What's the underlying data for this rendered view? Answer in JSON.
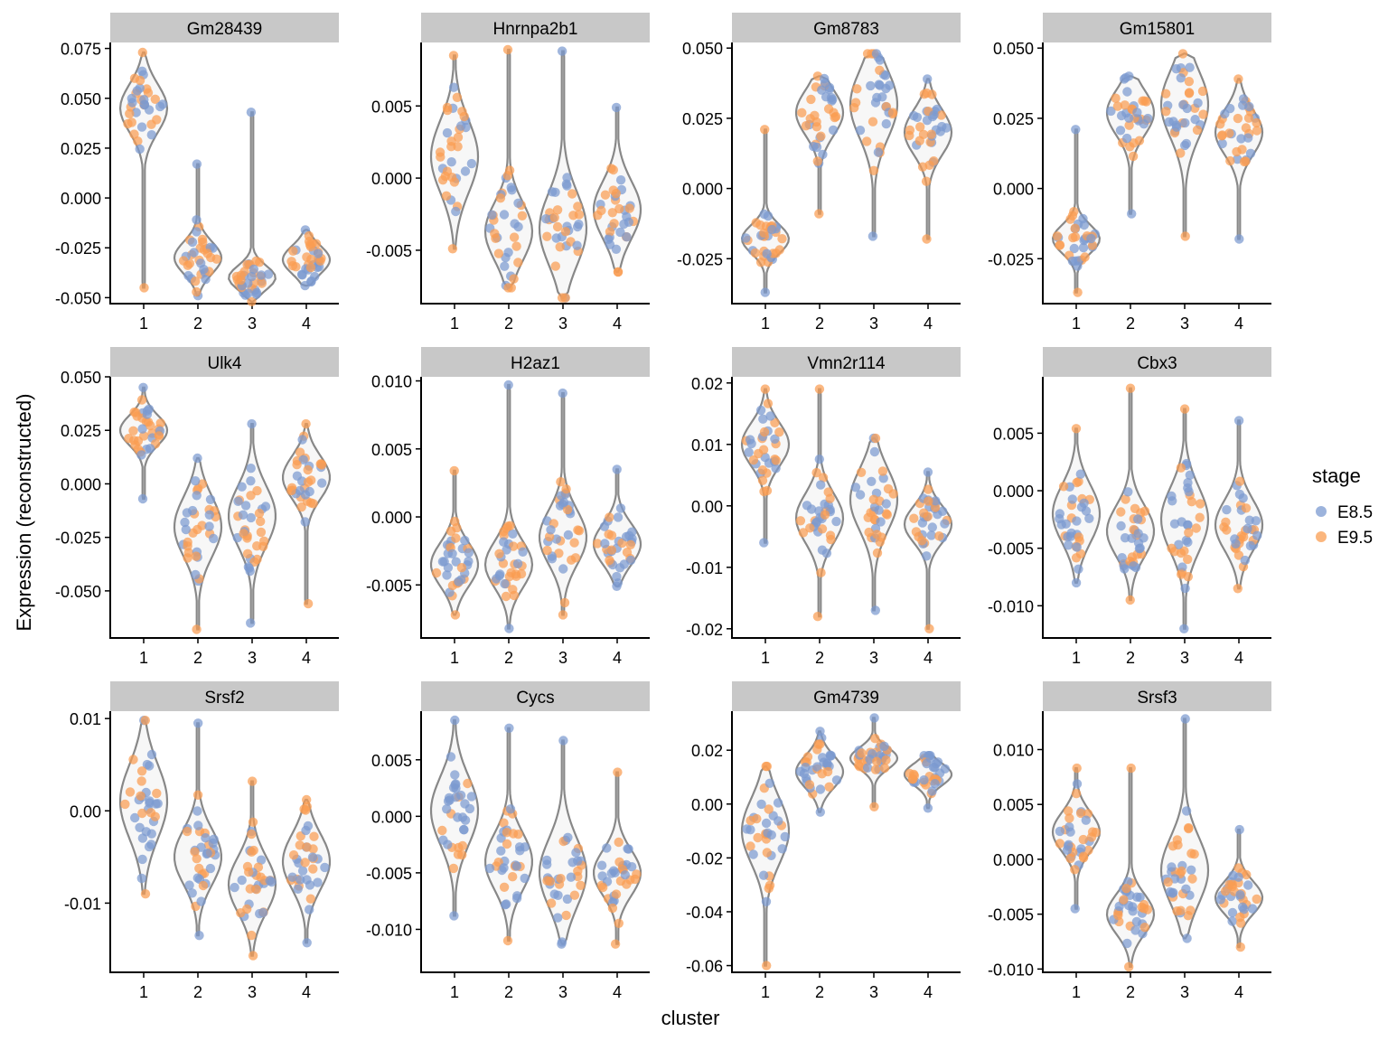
{
  "figure": {
    "x_axis_title": "cluster",
    "y_axis_title": "Expression (reconstructed)"
  },
  "legend": {
    "title": "stage",
    "placement": "right",
    "entries": [
      {
        "label": "E8.5",
        "color": "#7b9ad0"
      },
      {
        "label": "E9.5",
        "color": "#f99d52"
      }
    ]
  },
  "chart_data": [
    {
      "type": "violin",
      "title": "Gm28439",
      "categories": [
        "1",
        "2",
        "3",
        "4"
      ],
      "ylim": [
        -0.053,
        0.078
      ],
      "yticks": [
        -0.05,
        -0.025,
        0,
        0.025,
        0.05,
        0.075
      ],
      "ytick_labels": [
        "-0.050",
        "-0.025",
        "0.000",
        "0.025",
        "0.050",
        "0.075"
      ],
      "groups": [
        {
          "cluster": "1",
          "min": -0.045,
          "max": 0.073,
          "center": 0.045,
          "spread": 0.012
        },
        {
          "cluster": "2",
          "min": -0.049,
          "max": 0.017,
          "center": -0.03,
          "spread": 0.008
        },
        {
          "cluster": "3",
          "min": -0.052,
          "max": 0.043,
          "center": -0.04,
          "spread": 0.006
        },
        {
          "cluster": "4",
          "min": -0.044,
          "max": -0.016,
          "center": -0.031,
          "spread": 0.007
        }
      ]
    },
    {
      "type": "violin",
      "title": "Hnrnpa2b1",
      "categories": [
        "1",
        "2",
        "3",
        "4"
      ],
      "ylim": [
        -0.0087,
        0.0094
      ],
      "yticks": [
        -0.005,
        0,
        0.005
      ],
      "ytick_labels": [
        "-0.005",
        "0.000",
        "0.005"
      ],
      "groups": [
        {
          "cluster": "1",
          "min": -0.0049,
          "max": 0.0085,
          "center": 0.0015,
          "spread": 0.0025
        },
        {
          "cluster": "2",
          "min": -0.0076,
          "max": 0.0089,
          "center": -0.0037,
          "spread": 0.002
        },
        {
          "cluster": "3",
          "min": -0.0083,
          "max": 0.0088,
          "center": -0.0035,
          "spread": 0.0025
        },
        {
          "cluster": "4",
          "min": -0.0065,
          "max": 0.0049,
          "center": -0.0022,
          "spread": 0.002
        }
      ]
    },
    {
      "type": "violin",
      "title": "Gm8783",
      "categories": [
        "1",
        "2",
        "3",
        "4"
      ],
      "ylim": [
        -0.041,
        0.052
      ],
      "yticks": [
        -0.025,
        0,
        0.025,
        0.05
      ],
      "ytick_labels": [
        "-0.025",
        "0.000",
        "0.025",
        "0.050"
      ],
      "groups": [
        {
          "cluster": "1",
          "min": -0.037,
          "max": 0.021,
          "center": -0.018,
          "spread": 0.005
        },
        {
          "cluster": "2",
          "min": -0.009,
          "max": 0.04,
          "center": 0.027,
          "spread": 0.008
        },
        {
          "cluster": "3",
          "min": -0.017,
          "max": 0.048,
          "center": 0.03,
          "spread": 0.012
        },
        {
          "cluster": "4",
          "min": -0.018,
          "max": 0.039,
          "center": 0.02,
          "spread": 0.008
        }
      ]
    },
    {
      "type": "violin",
      "title": "Gm15801",
      "categories": [
        "1",
        "2",
        "3",
        "4"
      ],
      "ylim": [
        -0.041,
        0.052
      ],
      "yticks": [
        -0.025,
        0,
        0.025,
        0.05
      ],
      "ytick_labels": [
        "-0.025",
        "0.000",
        "0.025",
        "0.050"
      ],
      "groups": [
        {
          "cluster": "1",
          "min": -0.037,
          "max": 0.021,
          "center": -0.018,
          "spread": 0.005
        },
        {
          "cluster": "2",
          "min": -0.009,
          "max": 0.04,
          "center": 0.027,
          "spread": 0.008
        },
        {
          "cluster": "3",
          "min": -0.017,
          "max": 0.048,
          "center": 0.03,
          "spread": 0.012
        },
        {
          "cluster": "4",
          "min": -0.018,
          "max": 0.039,
          "center": 0.02,
          "spread": 0.008
        }
      ]
    },
    {
      "type": "violin",
      "title": "Ulk4",
      "categories": [
        "1",
        "2",
        "3",
        "4"
      ],
      "ylim": [
        -0.072,
        0.05
      ],
      "yticks": [
        -0.05,
        -0.025,
        0,
        0.025,
        0.05
      ],
      "ytick_labels": [
        "-0.050",
        "-0.025",
        "0.000",
        "0.025",
        "0.050"
      ],
      "groups": [
        {
          "cluster": "1",
          "min": -0.007,
          "max": 0.045,
          "center": 0.025,
          "spread": 0.007
        },
        {
          "cluster": "2",
          "min": -0.068,
          "max": 0.012,
          "center": -0.02,
          "spread": 0.014
        },
        {
          "cluster": "3",
          "min": -0.065,
          "max": 0.028,
          "center": -0.015,
          "spread": 0.014
        },
        {
          "cluster": "4",
          "min": -0.056,
          "max": 0.028,
          "center": 0.003,
          "spread": 0.01
        }
      ]
    },
    {
      "type": "violin",
      "title": "H2az1",
      "categories": [
        "1",
        "2",
        "3",
        "4"
      ],
      "ylim": [
        -0.0089,
        0.0103
      ],
      "yticks": [
        -0.005,
        0,
        0.005,
        0.01
      ],
      "ytick_labels": [
        "-0.005",
        "0.000",
        "0.005",
        "0.010"
      ],
      "groups": [
        {
          "cluster": "1",
          "min": -0.0072,
          "max": 0.0034,
          "center": -0.0035,
          "spread": 0.0016
        },
        {
          "cluster": "2",
          "min": -0.0082,
          "max": 0.0097,
          "center": -0.0035,
          "spread": 0.0017
        },
        {
          "cluster": "3",
          "min": -0.0072,
          "max": 0.0091,
          "center": -0.0015,
          "spread": 0.002
        },
        {
          "cluster": "4",
          "min": -0.0051,
          "max": 0.0035,
          "center": -0.002,
          "spread": 0.0015
        }
      ]
    },
    {
      "type": "violin",
      "title": "Vmn2r114",
      "categories": [
        "1",
        "2",
        "3",
        "4"
      ],
      "ylim": [
        -0.0215,
        0.021
      ],
      "yticks": [
        -0.02,
        -0.01,
        0,
        0.01,
        0.02
      ],
      "ytick_labels": [
        "-0.02",
        "-0.01",
        "0.00",
        "0.01",
        "0.02"
      ],
      "groups": [
        {
          "cluster": "1",
          "min": -0.006,
          "max": 0.019,
          "center": 0.01,
          "spread": 0.0035
        },
        {
          "cluster": "2",
          "min": -0.018,
          "max": 0.019,
          "center": -0.002,
          "spread": 0.004
        },
        {
          "cluster": "3",
          "min": -0.017,
          "max": 0.011,
          "center": 0.001,
          "spread": 0.005
        },
        {
          "cluster": "4",
          "min": -0.02,
          "max": 0.0055,
          "center": -0.003,
          "spread": 0.003
        }
      ]
    },
    {
      "type": "violin",
      "title": "Cbx3",
      "categories": [
        "1",
        "2",
        "3",
        "4"
      ],
      "ylim": [
        -0.0128,
        0.0099
      ],
      "yticks": [
        -0.01,
        -0.005,
        0,
        0.005
      ],
      "ytick_labels": [
        "-0.010",
        "-0.005",
        "0.000",
        "0.005"
      ],
      "groups": [
        {
          "cluster": "1",
          "min": -0.008,
          "max": 0.0054,
          "center": -0.002,
          "spread": 0.0025
        },
        {
          "cluster": "2",
          "min": -0.0095,
          "max": 0.0089,
          "center": -0.0035,
          "spread": 0.0022
        },
        {
          "cluster": "3",
          "min": -0.012,
          "max": 0.0071,
          "center": -0.0025,
          "spread": 0.0028
        },
        {
          "cluster": "4",
          "min": -0.0085,
          "max": 0.0061,
          "center": -0.003,
          "spread": 0.0022
        }
      ]
    },
    {
      "type": "violin",
      "title": "Srsf2",
      "categories": [
        "1",
        "2",
        "3",
        "4"
      ],
      "ylim": [
        -0.0175,
        0.0108
      ],
      "yticks": [
        -0.01,
        0,
        0.01
      ],
      "ytick_labels": [
        "-0.01",
        "0.00",
        "0.01"
      ],
      "groups": [
        {
          "cluster": "1",
          "min": -0.009,
          "max": 0.0098,
          "center": 0.001,
          "spread": 0.004
        },
        {
          "cluster": "2",
          "min": -0.0135,
          "max": 0.0095,
          "center": -0.005,
          "spread": 0.003
        },
        {
          "cluster": "3",
          "min": -0.0157,
          "max": 0.0032,
          "center": -0.008,
          "spread": 0.003
        },
        {
          "cluster": "4",
          "min": -0.0143,
          "max": 0.0012,
          "center": -0.0055,
          "spread": 0.003
        }
      ]
    },
    {
      "type": "violin",
      "title": "Cycs",
      "categories": [
        "1",
        "2",
        "3",
        "4"
      ],
      "ylim": [
        -0.0138,
        0.0093
      ],
      "yticks": [
        -0.01,
        -0.005,
        0,
        0.005
      ],
      "ytick_labels": [
        "-0.010",
        "-0.005",
        "0.000",
        "0.005"
      ],
      "groups": [
        {
          "cluster": "1",
          "min": -0.0088,
          "max": 0.0085,
          "center": 0.0005,
          "spread": 0.003
        },
        {
          "cluster": "2",
          "min": -0.011,
          "max": 0.0078,
          "center": -0.004,
          "spread": 0.0025
        },
        {
          "cluster": "3",
          "min": -0.0113,
          "max": 0.0067,
          "center": -0.005,
          "spread": 0.003
        },
        {
          "cluster": "4",
          "min": -0.0113,
          "max": 0.0039,
          "center": -0.005,
          "spread": 0.002
        }
      ]
    },
    {
      "type": "violin",
      "title": "Gm4739",
      "categories": [
        "1",
        "2",
        "3",
        "4"
      ],
      "ylim": [
        -0.0625,
        0.0345
      ],
      "yticks": [
        -0.06,
        -0.04,
        -0.02,
        0,
        0.02
      ],
      "ytick_labels": [
        "-0.06",
        "-0.04",
        "-0.02",
        "0.00",
        "0.02"
      ],
      "groups": [
        {
          "cluster": "1",
          "min": -0.06,
          "max": 0.014,
          "center": -0.01,
          "spread": 0.012
        },
        {
          "cluster": "2",
          "min": -0.003,
          "max": 0.027,
          "center": 0.012,
          "spread": 0.006
        },
        {
          "cluster": "3",
          "min": -0.001,
          "max": 0.032,
          "center": 0.017,
          "spread": 0.004
        },
        {
          "cluster": "4",
          "min": -0.0015,
          "max": 0.018,
          "center": 0.011,
          "spread": 0.004
        }
      ]
    },
    {
      "type": "violin",
      "title": "Srsf3",
      "categories": [
        "1",
        "2",
        "3",
        "4"
      ],
      "ylim": [
        -0.0103,
        0.0135
      ],
      "yticks": [
        -0.01,
        -0.005,
        0,
        0.005,
        0.01
      ],
      "ytick_labels": [
        "-0.010",
        "-0.005",
        "0.000",
        "0.005",
        "0.010"
      ],
      "groups": [
        {
          "cluster": "1",
          "min": -0.0045,
          "max": 0.0083,
          "center": 0.0025,
          "spread": 0.0018
        },
        {
          "cluster": "2",
          "min": -0.0098,
          "max": 0.0083,
          "center": -0.005,
          "spread": 0.0018
        },
        {
          "cluster": "3",
          "min": -0.0072,
          "max": 0.0128,
          "center": -0.001,
          "spread": 0.003
        },
        {
          "cluster": "4",
          "min": -0.008,
          "max": 0.0027,
          "center": -0.0035,
          "spread": 0.0015
        }
      ]
    }
  ]
}
